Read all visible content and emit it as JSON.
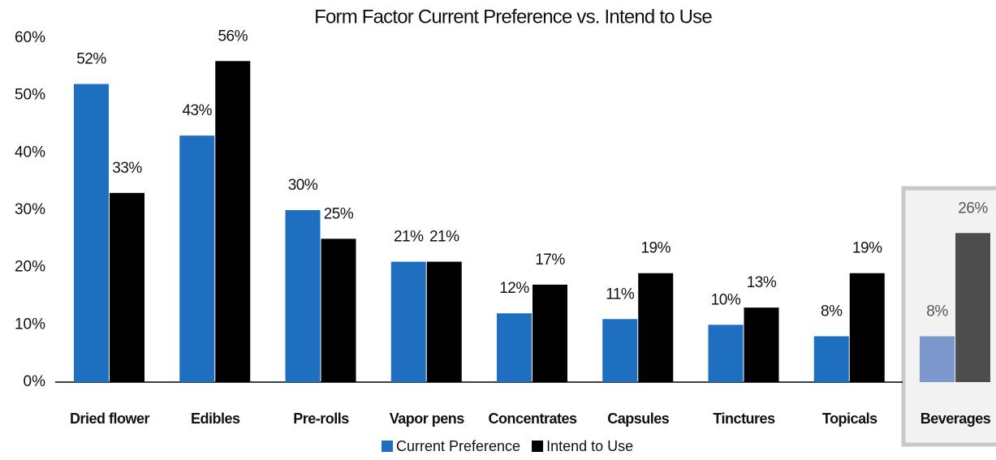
{
  "chart_data": {
    "type": "bar",
    "title": "Form Factor Current Preference vs. Intend to Use",
    "categories": [
      "Dried flower",
      "Edibles",
      "Pre-rolls",
      "Vapor pens",
      "Concentrates",
      "Capsules",
      "Tinctures",
      "Topicals",
      "Beverages"
    ],
    "series": [
      {
        "name": "Current Preference",
        "color": "#1f6fc0",
        "values": [
          52,
          43,
          30,
          21,
          12,
          11,
          10,
          8,
          8
        ],
        "value_labels": [
          "52%",
          "43%",
          "30%",
          "21%",
          "12%",
          "11%",
          "10%",
          "8%",
          "8%"
        ]
      },
      {
        "name": "Intend to Use",
        "color": "#000000",
        "values": [
          33,
          56,
          25,
          21,
          17,
          19,
          13,
          19,
          26
        ],
        "value_labels": [
          "33%",
          "56%",
          "25%",
          "21%",
          "17%",
          "19%",
          "13%",
          "19%",
          "26%"
        ]
      }
    ],
    "highlight": 8,
    "highlight_colors": [
      "#7b97cc",
      "#4d4d4d"
    ],
    "ylim": [
      0,
      60
    ],
    "yticks": [
      {
        "value": 0,
        "label": "0%"
      },
      {
        "value": 10,
        "label": "10%"
      },
      {
        "value": 20,
        "label": "20%"
      },
      {
        "value": 30,
        "label": "30%"
      },
      {
        "value": 40,
        "label": "40%"
      },
      {
        "value": 50,
        "label": "50%"
      },
      {
        "value": 60,
        "label": "60%"
      }
    ],
    "grid": false,
    "legend": "bottom"
  }
}
